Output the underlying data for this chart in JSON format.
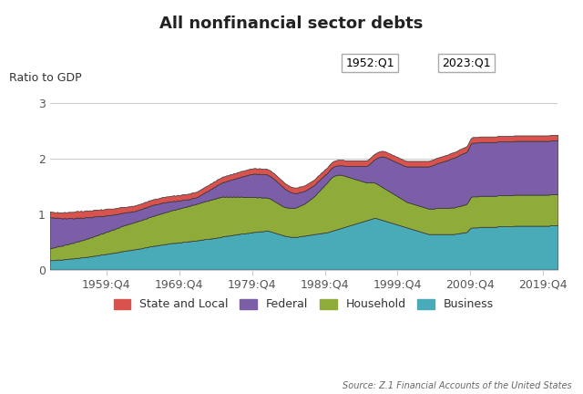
{
  "title": "All nonfinancial sector debts",
  "ylabel": "Ratio to GDP",
  "source": "Source: Z.1 Financial Accounts of the United States",
  "date_start": "1952:Q1",
  "date_end": "2023:Q1",
  "colors": {
    "State and Local": "#d9534e",
    "Federal": "#7b5ea7",
    "Household": "#8fac3a",
    "Business": "#4aabb8"
  },
  "ylim": [
    0,
    3.3
  ],
  "yticks": [
    0,
    1,
    2,
    3
  ],
  "xtick_labels": [
    "1959:Q4",
    "1969:Q4",
    "1979:Q4",
    "1989:Q4",
    "1999:Q4",
    "2009:Q4",
    "2019:Q4"
  ],
  "xtick_positions": [
    31,
    71,
    111,
    151,
    191,
    231,
    271
  ],
  "background_color": "#ffffff",
  "business": [
    0.17,
    0.17,
    0.17,
    0.17,
    0.18,
    0.18,
    0.18,
    0.18,
    0.19,
    0.19,
    0.19,
    0.2,
    0.2,
    0.2,
    0.21,
    0.21,
    0.21,
    0.22,
    0.22,
    0.22,
    0.23,
    0.23,
    0.24,
    0.24,
    0.25,
    0.25,
    0.26,
    0.26,
    0.27,
    0.27,
    0.28,
    0.28,
    0.29,
    0.29,
    0.3,
    0.3,
    0.31,
    0.31,
    0.32,
    0.33,
    0.33,
    0.34,
    0.34,
    0.35,
    0.35,
    0.36,
    0.36,
    0.37,
    0.37,
    0.38,
    0.38,
    0.39,
    0.4,
    0.4,
    0.41,
    0.42,
    0.42,
    0.43,
    0.43,
    0.44,
    0.44,
    0.45,
    0.45,
    0.46,
    0.46,
    0.47,
    0.47,
    0.48,
    0.48,
    0.48,
    0.49,
    0.49,
    0.49,
    0.5,
    0.5,
    0.5,
    0.51,
    0.51,
    0.52,
    0.52,
    0.52,
    0.53,
    0.53,
    0.54,
    0.54,
    0.55,
    0.55,
    0.55,
    0.56,
    0.56,
    0.57,
    0.57,
    0.58,
    0.58,
    0.59,
    0.6,
    0.6,
    0.61,
    0.61,
    0.62,
    0.62,
    0.63,
    0.63,
    0.64,
    0.64,
    0.65,
    0.65,
    0.65,
    0.66,
    0.66,
    0.67,
    0.67,
    0.68,
    0.68,
    0.68,
    0.69,
    0.69,
    0.69,
    0.7,
    0.7,
    0.7,
    0.69,
    0.68,
    0.67,
    0.66,
    0.65,
    0.64,
    0.63,
    0.62,
    0.61,
    0.6,
    0.6,
    0.59,
    0.59,
    0.59,
    0.59,
    0.59,
    0.6,
    0.6,
    0.61,
    0.61,
    0.62,
    0.62,
    0.63,
    0.63,
    0.64,
    0.64,
    0.65,
    0.65,
    0.66,
    0.66,
    0.67,
    0.67,
    0.68,
    0.69,
    0.7,
    0.71,
    0.72,
    0.73,
    0.74,
    0.75,
    0.76,
    0.77,
    0.78,
    0.79,
    0.8,
    0.81,
    0.82,
    0.83,
    0.84,
    0.85,
    0.86,
    0.87,
    0.88,
    0.89,
    0.9,
    0.91,
    0.92,
    0.93,
    0.93,
    0.92,
    0.91,
    0.9,
    0.89,
    0.88,
    0.87,
    0.86,
    0.85,
    0.84,
    0.83,
    0.82,
    0.81,
    0.8,
    0.79,
    0.78,
    0.77,
    0.76,
    0.75,
    0.74,
    0.73,
    0.72,
    0.71,
    0.7,
    0.69,
    0.68,
    0.67,
    0.66,
    0.65,
    0.64,
    0.64,
    0.64,
    0.64,
    0.64,
    0.64,
    0.64,
    0.64,
    0.64,
    0.64,
    0.64,
    0.64,
    0.64,
    0.64,
    0.64,
    0.65,
    0.65,
    0.66,
    0.66,
    0.67,
    0.67,
    0.68,
    0.72,
    0.75,
    0.76,
    0.76,
    0.76,
    0.76,
    0.77,
    0.77,
    0.77,
    0.77,
    0.77,
    0.77,
    0.77,
    0.77,
    0.77,
    0.77,
    0.78,
    0.78,
    0.78,
    0.78,
    0.78,
    0.78,
    0.78,
    0.78,
    0.78,
    0.79,
    0.79,
    0.79,
    0.79,
    0.79,
    0.79,
    0.79,
    0.79,
    0.79,
    0.79,
    0.79,
    0.79,
    0.79,
    0.79,
    0.79,
    0.79,
    0.79,
    0.79,
    0.79,
    0.79,
    0.8,
    0.8,
    0.8,
    0.8,
    0.8,
    0.8,
    0.8,
    0.8,
    0.8
  ],
  "household": [
    0.22,
    0.22,
    0.23,
    0.23,
    0.24,
    0.24,
    0.25,
    0.25,
    0.26,
    0.26,
    0.27,
    0.27,
    0.28,
    0.28,
    0.29,
    0.3,
    0.3,
    0.31,
    0.31,
    0.32,
    0.33,
    0.33,
    0.34,
    0.34,
    0.35,
    0.36,
    0.36,
    0.37,
    0.38,
    0.38,
    0.39,
    0.4,
    0.4,
    0.41,
    0.42,
    0.42,
    0.43,
    0.44,
    0.44,
    0.45,
    0.46,
    0.46,
    0.47,
    0.47,
    0.48,
    0.48,
    0.49,
    0.49,
    0.5,
    0.5,
    0.51,
    0.51,
    0.52,
    0.52,
    0.53,
    0.53,
    0.54,
    0.54,
    0.55,
    0.55,
    0.56,
    0.56,
    0.57,
    0.57,
    0.58,
    0.58,
    0.59,
    0.59,
    0.6,
    0.6,
    0.61,
    0.61,
    0.62,
    0.62,
    0.63,
    0.63,
    0.64,
    0.64,
    0.65,
    0.65,
    0.66,
    0.66,
    0.67,
    0.67,
    0.68,
    0.68,
    0.69,
    0.69,
    0.7,
    0.7,
    0.71,
    0.71,
    0.72,
    0.72,
    0.72,
    0.72,
    0.71,
    0.71,
    0.7,
    0.7,
    0.69,
    0.69,
    0.68,
    0.68,
    0.67,
    0.67,
    0.66,
    0.66,
    0.65,
    0.65,
    0.64,
    0.64,
    0.63,
    0.63,
    0.62,
    0.62,
    0.61,
    0.61,
    0.6,
    0.6,
    0.59,
    0.59,
    0.58,
    0.57,
    0.56,
    0.55,
    0.54,
    0.53,
    0.52,
    0.52,
    0.52,
    0.52,
    0.52,
    0.52,
    0.52,
    0.53,
    0.54,
    0.55,
    0.56,
    0.57,
    0.58,
    0.6,
    0.62,
    0.64,
    0.66,
    0.68,
    0.71,
    0.74,
    0.77,
    0.8,
    0.83,
    0.86,
    0.89,
    0.92,
    0.95,
    0.97,
    0.98,
    0.98,
    0.98,
    0.97,
    0.96,
    0.94,
    0.92,
    0.9,
    0.88,
    0.86,
    0.84,
    0.82,
    0.8,
    0.78,
    0.76,
    0.74,
    0.72,
    0.7,
    0.68,
    0.67,
    0.66,
    0.65,
    0.64,
    0.63,
    0.62,
    0.61,
    0.6,
    0.59,
    0.58,
    0.57,
    0.56,
    0.55,
    0.54,
    0.53,
    0.52,
    0.51,
    0.5,
    0.49,
    0.48,
    0.47,
    0.46,
    0.46,
    0.46,
    0.46,
    0.46,
    0.46,
    0.46,
    0.46,
    0.46,
    0.46,
    0.46,
    0.46,
    0.46,
    0.46,
    0.46,
    0.46,
    0.47,
    0.47,
    0.47,
    0.47,
    0.47,
    0.47,
    0.47,
    0.47,
    0.48,
    0.48,
    0.48,
    0.48,
    0.49,
    0.49,
    0.49,
    0.5,
    0.5,
    0.51,
    0.52,
    0.55,
    0.56,
    0.56,
    0.56,
    0.56,
    0.56,
    0.56,
    0.56,
    0.56,
    0.56,
    0.56,
    0.56,
    0.56,
    0.56,
    0.56,
    0.56,
    0.56,
    0.56,
    0.56,
    0.56,
    0.56,
    0.56,
    0.56,
    0.56,
    0.56,
    0.56,
    0.56,
    0.56,
    0.56,
    0.56,
    0.56,
    0.56,
    0.56,
    0.56,
    0.56,
    0.56,
    0.56,
    0.56,
    0.56,
    0.56,
    0.56,
    0.56,
    0.56,
    0.56,
    0.56,
    0.56,
    0.56,
    0.56,
    0.56
  ],
  "federal": [
    0.56,
    0.55,
    0.54,
    0.53,
    0.52,
    0.51,
    0.5,
    0.49,
    0.48,
    0.47,
    0.47,
    0.46,
    0.45,
    0.44,
    0.43,
    0.43,
    0.42,
    0.41,
    0.4,
    0.4,
    0.39,
    0.38,
    0.37,
    0.36,
    0.36,
    0.35,
    0.34,
    0.33,
    0.32,
    0.31,
    0.3,
    0.3,
    0.29,
    0.28,
    0.27,
    0.27,
    0.26,
    0.25,
    0.25,
    0.24,
    0.23,
    0.23,
    0.22,
    0.22,
    0.21,
    0.21,
    0.2,
    0.2,
    0.2,
    0.2,
    0.2,
    0.2,
    0.2,
    0.2,
    0.2,
    0.2,
    0.2,
    0.2,
    0.2,
    0.19,
    0.19,
    0.19,
    0.19,
    0.18,
    0.18,
    0.17,
    0.17,
    0.16,
    0.16,
    0.15,
    0.15,
    0.14,
    0.14,
    0.14,
    0.13,
    0.13,
    0.12,
    0.12,
    0.12,
    0.12,
    0.12,
    0.12,
    0.13,
    0.14,
    0.15,
    0.16,
    0.17,
    0.18,
    0.19,
    0.2,
    0.21,
    0.22,
    0.23,
    0.24,
    0.25,
    0.26,
    0.27,
    0.28,
    0.29,
    0.3,
    0.31,
    0.32,
    0.33,
    0.34,
    0.35,
    0.36,
    0.37,
    0.38,
    0.39,
    0.4,
    0.41,
    0.41,
    0.42,
    0.42,
    0.42,
    0.42,
    0.42,
    0.42,
    0.42,
    0.42,
    0.41,
    0.41,
    0.4,
    0.4,
    0.39,
    0.38,
    0.37,
    0.36,
    0.35,
    0.33,
    0.32,
    0.3,
    0.29,
    0.28,
    0.27,
    0.26,
    0.25,
    0.25,
    0.24,
    0.23,
    0.23,
    0.22,
    0.22,
    0.21,
    0.21,
    0.2,
    0.2,
    0.2,
    0.19,
    0.19,
    0.18,
    0.18,
    0.17,
    0.17,
    0.17,
    0.17,
    0.17,
    0.17,
    0.17,
    0.17,
    0.17,
    0.18,
    0.18,
    0.19,
    0.2,
    0.21,
    0.22,
    0.23,
    0.24,
    0.25,
    0.26,
    0.27,
    0.28,
    0.29,
    0.3,
    0.32,
    0.35,
    0.38,
    0.41,
    0.44,
    0.48,
    0.51,
    0.54,
    0.56,
    0.57,
    0.58,
    0.58,
    0.59,
    0.59,
    0.6,
    0.6,
    0.61,
    0.61,
    0.62,
    0.62,
    0.63,
    0.64,
    0.65,
    0.66,
    0.67,
    0.68,
    0.69,
    0.7,
    0.71,
    0.72,
    0.73,
    0.74,
    0.75,
    0.76,
    0.77,
    0.78,
    0.79,
    0.8,
    0.81,
    0.82,
    0.83,
    0.84,
    0.85,
    0.86,
    0.87,
    0.88,
    0.89,
    0.9,
    0.9,
    0.91,
    0.92,
    0.93,
    0.93,
    0.94,
    0.94,
    0.95,
    0.96,
    0.97,
    0.97,
    0.97,
    0.97,
    0.97,
    0.97,
    0.97,
    0.97,
    0.97,
    0.97,
    0.97,
    0.97,
    0.97,
    0.97,
    0.97,
    0.97,
    0.97,
    0.97,
    0.97,
    0.97,
    0.97,
    0.97,
    0.97,
    0.97,
    0.97,
    0.97,
    0.97,
    0.97,
    0.97,
    0.97,
    0.97,
    0.97,
    0.97,
    0.97,
    0.97,
    0.97,
    0.97,
    0.97,
    0.97,
    0.97,
    0.97,
    0.97,
    0.97,
    0.97,
    0.97,
    0.97,
    0.97,
    0.97
  ],
  "state_local": [
    0.1,
    0.1,
    0.1,
    0.1,
    0.1,
    0.1,
    0.1,
    0.11,
    0.11,
    0.11,
    0.11,
    0.11,
    0.11,
    0.12,
    0.12,
    0.12,
    0.12,
    0.12,
    0.12,
    0.12,
    0.12,
    0.12,
    0.12,
    0.12,
    0.12,
    0.12,
    0.12,
    0.12,
    0.12,
    0.12,
    0.12,
    0.12,
    0.12,
    0.12,
    0.11,
    0.11,
    0.11,
    0.11,
    0.11,
    0.11,
    0.11,
    0.1,
    0.1,
    0.1,
    0.1,
    0.1,
    0.1,
    0.1,
    0.1,
    0.1,
    0.1,
    0.1,
    0.1,
    0.1,
    0.1,
    0.1,
    0.1,
    0.1,
    0.1,
    0.1,
    0.1,
    0.1,
    0.1,
    0.1,
    0.1,
    0.1,
    0.1,
    0.1,
    0.1,
    0.1,
    0.1,
    0.1,
    0.1,
    0.1,
    0.1,
    0.1,
    0.1,
    0.1,
    0.1,
    0.1,
    0.1,
    0.1,
    0.1,
    0.1,
    0.1,
    0.1,
    0.1,
    0.1,
    0.1,
    0.1,
    0.1,
    0.1,
    0.1,
    0.1,
    0.1,
    0.1,
    0.1,
    0.1,
    0.1,
    0.1,
    0.1,
    0.1,
    0.1,
    0.1,
    0.1,
    0.1,
    0.1,
    0.1,
    0.1,
    0.1,
    0.1,
    0.1,
    0.1,
    0.1,
    0.1,
    0.1,
    0.1,
    0.1,
    0.1,
    0.1,
    0.1,
    0.1,
    0.1,
    0.1,
    0.1,
    0.1,
    0.1,
    0.1,
    0.1,
    0.1,
    0.1,
    0.1,
    0.1,
    0.1,
    0.1,
    0.1,
    0.1,
    0.1,
    0.1,
    0.1,
    0.1,
    0.1,
    0.1,
    0.1,
    0.1,
    0.1,
    0.1,
    0.1,
    0.1,
    0.1,
    0.1,
    0.1,
    0.1,
    0.1,
    0.1,
    0.1,
    0.1,
    0.1,
    0.1,
    0.1,
    0.1,
    0.1,
    0.1,
    0.1,
    0.1,
    0.1,
    0.1,
    0.1,
    0.1,
    0.1,
    0.1,
    0.1,
    0.1,
    0.1,
    0.1,
    0.1,
    0.1,
    0.1,
    0.1,
    0.1,
    0.1,
    0.1,
    0.1,
    0.1,
    0.1,
    0.1,
    0.1,
    0.1,
    0.1,
    0.1,
    0.1,
    0.1,
    0.1,
    0.1,
    0.1,
    0.1,
    0.1,
    0.1,
    0.1,
    0.1,
    0.1,
    0.1,
    0.1,
    0.1,
    0.1,
    0.1,
    0.1,
    0.1,
    0.1,
    0.1,
    0.1,
    0.1,
    0.1,
    0.1,
    0.1,
    0.1,
    0.1,
    0.1,
    0.1,
    0.1,
    0.1,
    0.1,
    0.1,
    0.1,
    0.1,
    0.1,
    0.1,
    0.1,
    0.1,
    0.1,
    0.1,
    0.1,
    0.1,
    0.1,
    0.1,
    0.1,
    0.1,
    0.1,
    0.1,
    0.1,
    0.1,
    0.1,
    0.1,
    0.1,
    0.1,
    0.1,
    0.1,
    0.1,
    0.1,
    0.1,
    0.1,
    0.1,
    0.1,
    0.1,
    0.1,
    0.1,
    0.1,
    0.1,
    0.1,
    0.1,
    0.1,
    0.1,
    0.1,
    0.1,
    0.1,
    0.1,
    0.1,
    0.1,
    0.1,
    0.1,
    0.1,
    0.1,
    0.1,
    0.1,
    0.1,
    0.1,
    0.1,
    0.1,
    0.1,
    0.1
  ]
}
